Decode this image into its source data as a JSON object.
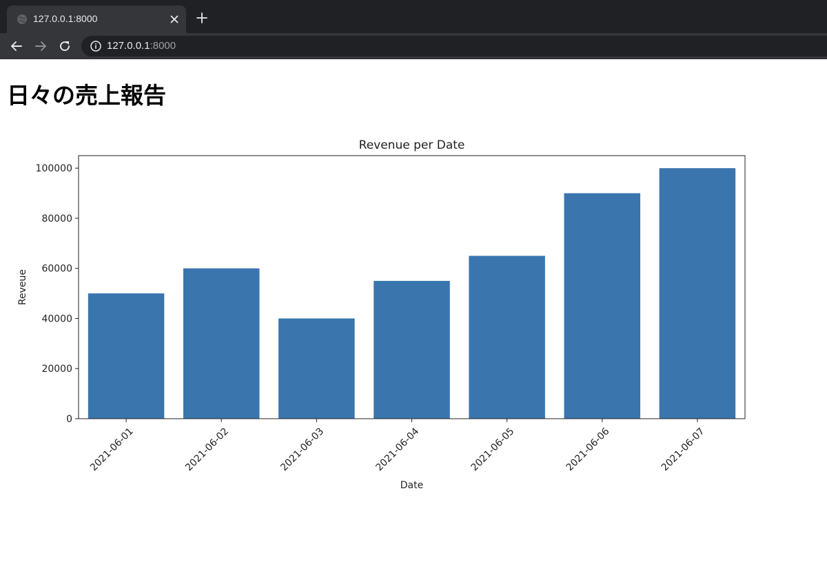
{
  "browser": {
    "tab_title": "127.0.0.1:8000",
    "url_host": "127.0.0.1",
    "url_port": ":8000",
    "icons": {
      "favicon": "globe-icon",
      "close": "close-icon",
      "new_tab": "plus-icon",
      "back": "back-arrow-icon",
      "forward": "forward-arrow-icon",
      "reload": "reload-icon",
      "site_info": "info-icon"
    }
  },
  "page": {
    "title": "日々の売上報告"
  },
  "chart_data": {
    "type": "bar",
    "title": "Revenue per Date",
    "xlabel": "Date",
    "ylabel": "Reveue",
    "categories": [
      "2021-06-01",
      "2021-06-02",
      "2021-06-03",
      "2021-06-04",
      "2021-06-05",
      "2021-06-06",
      "2021-06-07"
    ],
    "values": [
      50000,
      60000,
      40000,
      55000,
      65000,
      90000,
      100000
    ],
    "ylim": [
      0,
      105000
    ],
    "yticks": [
      0,
      20000,
      40000,
      60000,
      80000,
      100000
    ],
    "bar_color": "#3a75ae",
    "grid": false,
    "xtick_rotation": "45"
  }
}
